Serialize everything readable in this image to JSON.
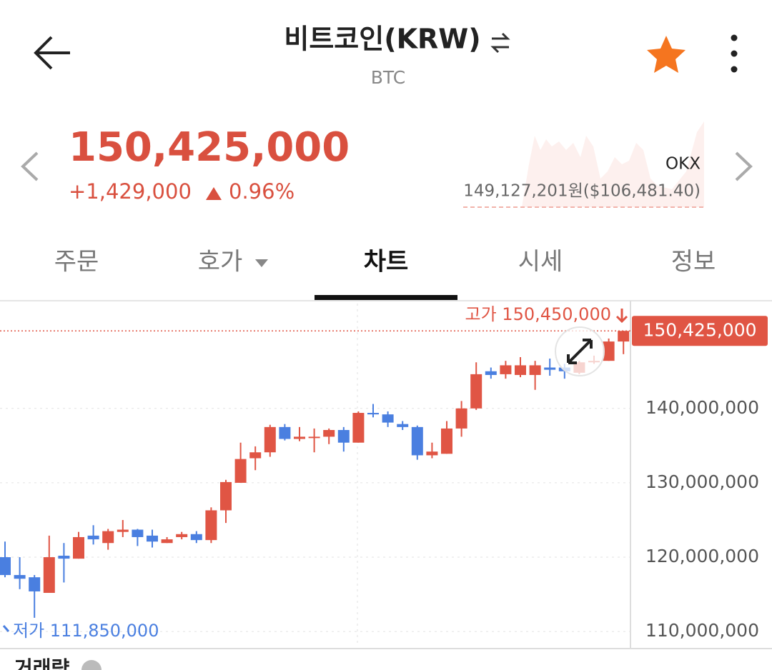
{
  "header": {
    "title": "비트코인(KRW)",
    "subtitle": "BTC"
  },
  "price": {
    "current": "150,425,000",
    "change": "+1,429,000",
    "change_rate": "0.96%",
    "exchange": "OKX",
    "exchange_price": "149,127,201원($106,481.40)"
  },
  "tabs": [
    "주문",
    "호가",
    "차트",
    "시세",
    "정보"
  ],
  "chart_data": {
    "type": "candlestick",
    "open": [
      120000000,
      117600000,
      117300000,
      115200000,
      120200000,
      119800000,
      122900000,
      121900000,
      123400000,
      123700000,
      122900000,
      121900000,
      122700000,
      123100000,
      122300000,
      126300000,
      130000000,
      133300000,
      134100000,
      137500000,
      135900000,
      136100000,
      136200000,
      137100000,
      135400000,
      139400000,
      139200000,
      137900000,
      137500000,
      133700000,
      133900000,
      137300000,
      140000000,
      145000000,
      144600000,
      144500000,
      144500000,
      145500000,
      145500000,
      144800000,
      146200000,
      146400000,
      149000000
    ],
    "high": [
      122100000,
      120000000,
      117600000,
      122900000,
      121900000,
      123400000,
      124300000,
      123800000,
      125000000,
      123800000,
      123700000,
      122700000,
      123400000,
      123500000,
      126700000,
      130400000,
      135400000,
      134900000,
      137800000,
      137900000,
      137500000,
      137300000,
      137300000,
      137500000,
      139600000,
      140600000,
      139600000,
      138300000,
      137700000,
      135400000,
      138300000,
      141000000,
      146200000,
      145500000,
      146400000,
      146900000,
      146400000,
      146700000,
      146000000,
      146400000,
      147100000,
      149400000,
      150450000
    ],
    "low": [
      117300000,
      115700000,
      111850000,
      115200000,
      116600000,
      119800000,
      121700000,
      121000000,
      122700000,
      121500000,
      121300000,
      121900000,
      122400000,
      121900000,
      121900000,
      124600000,
      130000000,
      131700000,
      133500000,
      135700000,
      135600000,
      134100000,
      135200000,
      134200000,
      135400000,
      138800000,
      137500000,
      137100000,
      133100000,
      133300000,
      133900000,
      136200000,
      139800000,
      144000000,
      144000000,
      144200000,
      142500000,
      144400000,
      144000000,
      144600000,
      146000000,
      146400000,
      147300000
    ],
    "close": [
      117600000,
      117100000,
      115400000,
      120000000,
      119800000,
      122700000,
      122400000,
      123500000,
      123700000,
      122700000,
      122100000,
      122400000,
      123100000,
      122300000,
      126300000,
      130100000,
      133200000,
      134100000,
      137500000,
      135900000,
      136200000,
      136200000,
      137100000,
      135400000,
      139400000,
      139200000,
      138100000,
      137500000,
      133700000,
      134200000,
      137300000,
      140000000,
      144600000,
      144500000,
      145800000,
      145800000,
      145800000,
      145200000,
      145000000,
      146200000,
      146400000,
      149000000,
      150425000
    ],
    "up_color": "#e05544",
    "down_color": "#4a7fe0",
    "ylim": [
      108000000,
      154100000
    ],
    "yticks": [
      {
        "value": 110000000,
        "label": "110,000,000"
      },
      {
        "value": 120000000,
        "label": "120,000,000"
      },
      {
        "value": 130000000,
        "label": "130,000,000"
      },
      {
        "value": 140000000,
        "label": "140,000,000"
      }
    ],
    "last_price": {
      "value": 150425000,
      "label": "150,425,000"
    },
    "high_label": "고가 150,450,000",
    "low_label": "저가 111,850,000",
    "volume_label": "거래량"
  }
}
